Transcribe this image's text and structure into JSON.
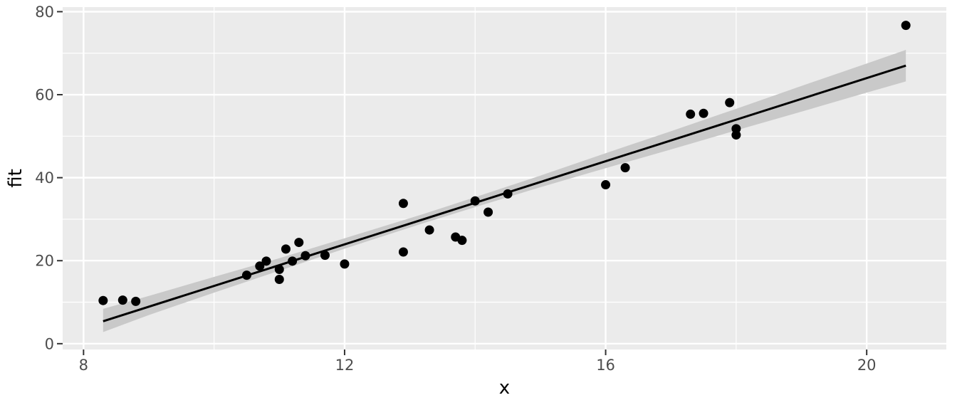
{
  "chart_data": {
    "type": "scatter",
    "title": "",
    "xlabel": "x",
    "ylabel": "fit",
    "xlim": [
      7.68,
      21.22
    ],
    "ylim": [
      -1.4,
      81.1
    ],
    "x_ticks": [
      8,
      12,
      16,
      20
    ],
    "x_tick_labels": [
      "8",
      "12",
      "16",
      "20"
    ],
    "y_ticks": [
      0,
      20,
      40,
      60,
      80
    ],
    "y_tick_labels": [
      "0",
      "20",
      "40",
      "60",
      "80"
    ],
    "x_minor_breaks": [
      10,
      14,
      18
    ],
    "y_minor_breaks": [
      10,
      30,
      50,
      70
    ],
    "grid": "white major and minor gridlines on gray panel",
    "legend": "none",
    "points": [
      [
        8.3,
        10.4
      ],
      [
        8.6,
        10.5
      ],
      [
        8.8,
        10.2
      ],
      [
        10.5,
        16.5
      ],
      [
        10.7,
        18.7
      ],
      [
        10.8,
        19.9
      ],
      [
        11.0,
        17.9
      ],
      [
        11.0,
        15.5
      ],
      [
        11.1,
        22.8
      ],
      [
        11.2,
        19.9
      ],
      [
        11.3,
        24.4
      ],
      [
        11.4,
        21.2
      ],
      [
        11.7,
        21.3
      ],
      [
        12.0,
        19.2
      ],
      [
        12.9,
        33.8
      ],
      [
        12.9,
        22.1
      ],
      [
        13.3,
        27.4
      ],
      [
        13.7,
        25.7
      ],
      [
        13.8,
        24.9
      ],
      [
        14.0,
        34.4
      ],
      [
        14.2,
        31.7
      ],
      [
        14.5,
        36.1
      ],
      [
        16.0,
        38.3
      ],
      [
        16.3,
        42.4
      ],
      [
        17.3,
        55.3
      ],
      [
        17.5,
        55.5
      ],
      [
        17.9,
        58.1
      ],
      [
        18.0,
        51.8
      ],
      [
        18.0,
        50.3
      ],
      [
        20.6,
        76.7
      ]
    ],
    "regression_line": {
      "x1": 8.3,
      "y1": 5.4,
      "x2": 20.6,
      "y2": 67.0,
      "slope": 5.0,
      "intercept": -36.1
    },
    "ribbon": {
      "description": "confidence band around regression line",
      "x": [
        8.3,
        9.0,
        10.0,
        11.0,
        12.0,
        13.2,
        14.0,
        15.0,
        16.0,
        17.0,
        18.0,
        19.0,
        20.0,
        20.6
      ],
      "upper": [
        8.4,
        11.5,
        16.1,
        20.6,
        25.4,
        31.2,
        35.3,
        40.5,
        45.9,
        51.2,
        56.6,
        62.1,
        67.5,
        70.8
      ],
      "lower": [
        2.8,
        6.9,
        12.3,
        17.6,
        22.9,
        29.0,
        32.9,
        37.7,
        42.3,
        46.8,
        51.4,
        55.9,
        60.5,
        63.2
      ]
    },
    "colors": {
      "panel_bg": "#EBEBEB",
      "grid": "#FFFFFF",
      "ribbon": "#C9C9C9",
      "line": "#000000",
      "point": "#000000",
      "tick_label": "#4D4D4D",
      "axis_title": "#000000",
      "tick_mark": "#333333"
    }
  }
}
